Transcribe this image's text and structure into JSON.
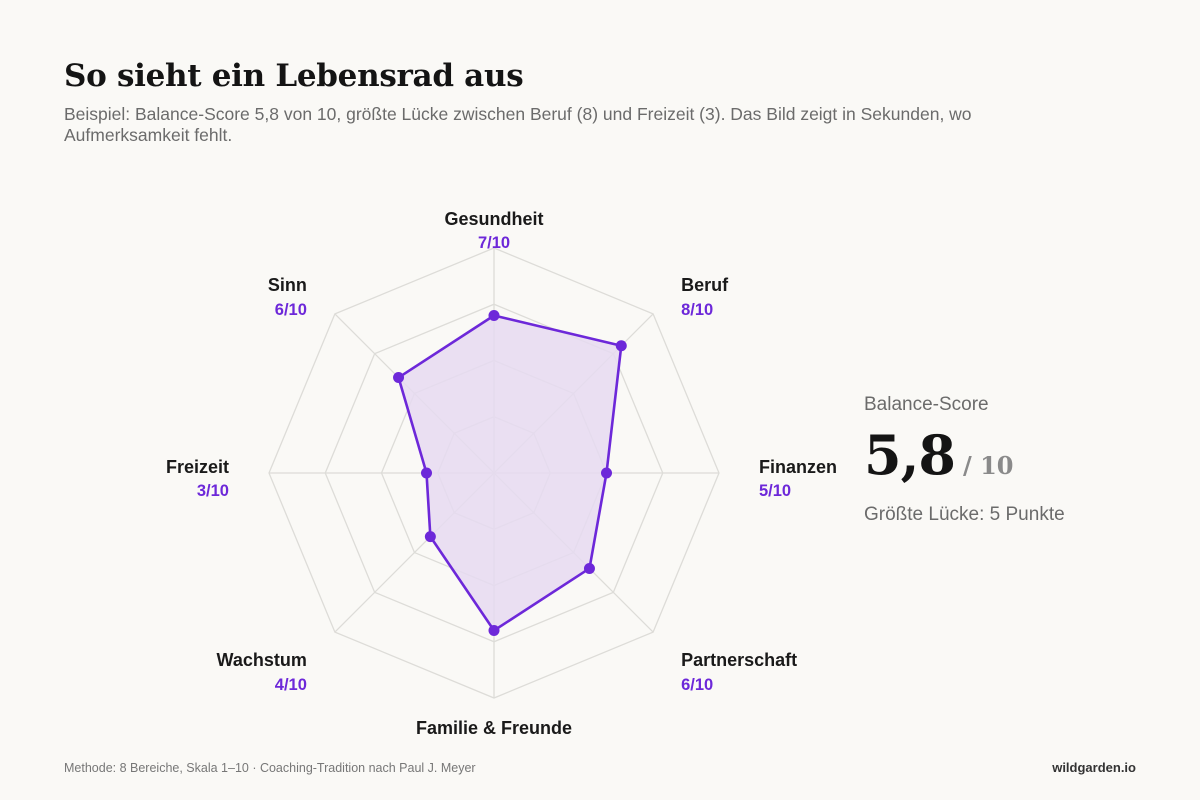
{
  "title": "So sieht ein Lebensrad aus",
  "subtitle": "Beispiel: Balance-Score 5,8 von 10, größte Lücke zwischen Beruf (8) und Freizeit (3). Das Bild zeigt in Sekunden, wo Aufmerksamkeit fehlt.",
  "chart_data": {
    "type": "radar",
    "categories": [
      "Gesundheit",
      "Beruf",
      "Finanzen",
      "Partnerschaft",
      "Familie & Freunde",
      "Wachstum",
      "Freizeit",
      "Sinn"
    ],
    "values": [
      7,
      8,
      5,
      6,
      7,
      4,
      3,
      6
    ],
    "value_labels": [
      "7/10",
      "8/10",
      "5/10",
      "6/10",
      "",
      "4/10",
      "3/10",
      "6/10"
    ],
    "scale": [
      0,
      10
    ],
    "grid": true,
    "colors": {
      "line": "#6d28d9",
      "fill": "#e6dbf1",
      "grid": "#dddcd8",
      "label_value": "#6d28d9"
    }
  },
  "score": {
    "caption": "Balance-Score",
    "value": "5,8",
    "max": "/ 10",
    "gap": "Größte Lücke: 5 Punkte"
  },
  "footer": {
    "method": "Methode: 8 Bereiche, Skala 1–10 · Coaching-Tradition nach Paul J. Meyer",
    "brand": "wildgarden.io"
  }
}
